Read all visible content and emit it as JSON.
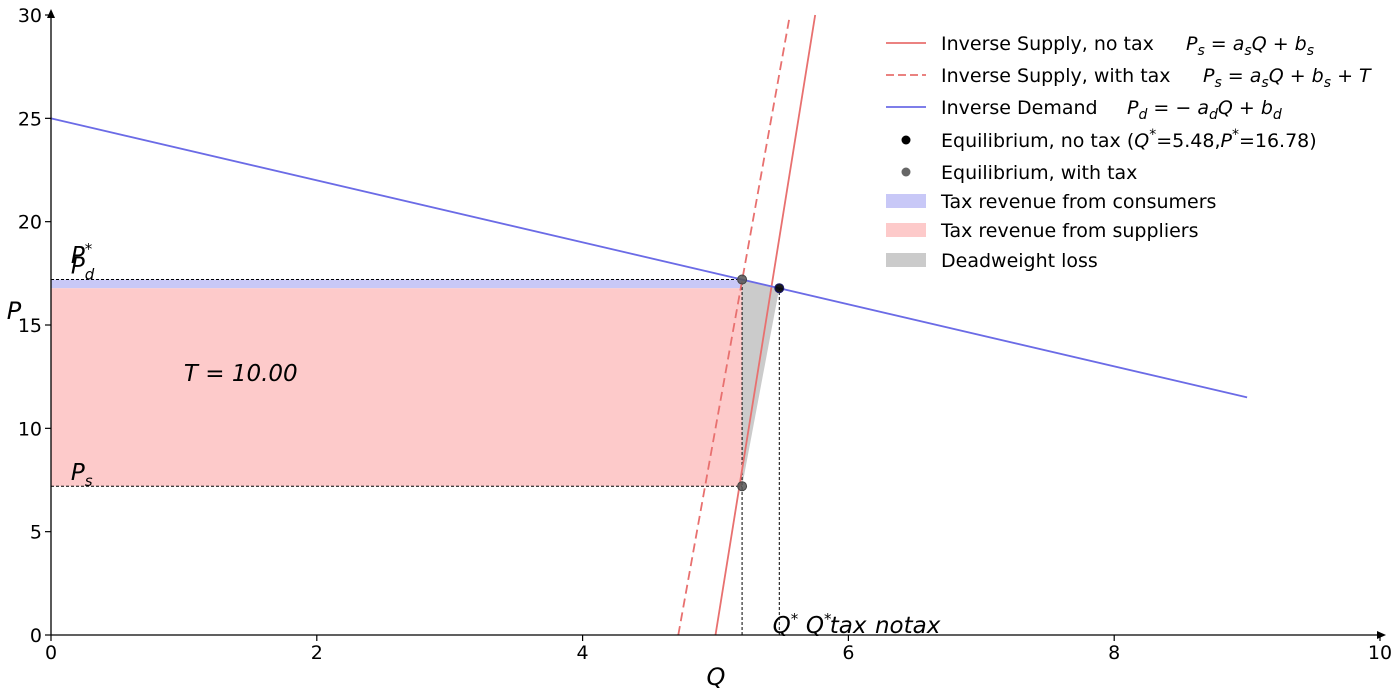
{
  "chart_data": {
    "type": "line",
    "xlabel": "Q",
    "ylabel": "P",
    "xlim": [
      0,
      10
    ],
    "ylim": [
      0,
      30
    ],
    "x_ticks": [
      "0",
      "2",
      "4",
      "6",
      "8",
      "10"
    ],
    "y_ticks": [
      "0",
      "5",
      "10",
      "15",
      "20",
      "25",
      "30"
    ],
    "grid": false,
    "legend_position": "top-right",
    "series": [
      {
        "name": "Inverse Supply, no tax",
        "formula": "P_s = a_sQ + b_s",
        "style": "solid",
        "color": "#e8706f",
        "points": [
          [
            5.0,
            0.0
          ],
          [
            5.75,
            30.0
          ]
        ]
      },
      {
        "name": "Inverse Supply, with tax",
        "formula": "P_s = a_sQ + b_s + T",
        "style": "dashed",
        "color": "#e8706f",
        "points": [
          [
            4.72,
            0.0
          ],
          [
            5.56,
            30.0
          ]
        ]
      },
      {
        "name": "Inverse Demand",
        "formula": "P_d = -a_dQ + b_d",
        "style": "solid",
        "color": "#6b6be6",
        "points": [
          [
            0.0,
            25.0
          ],
          [
            9.0,
            11.5
          ]
        ]
      }
    ],
    "equilibria": [
      {
        "name": "Equilibrium, no tax",
        "q_value": "5.48",
        "p_value": "16.78",
        "x": 5.48,
        "y": 16.78,
        "color": "#000000"
      },
      {
        "name": "Equilibrium, with tax",
        "points": [
          [
            5.2,
            17.2
          ],
          [
            5.2,
            7.2
          ]
        ],
        "color": "#555555"
      }
    ],
    "areas": [
      {
        "name": "Tax revenue from consumers",
        "color": "#c8c8f7",
        "polygon": [
          [
            0,
            16.78
          ],
          [
            5.2,
            16.78
          ],
          [
            5.2,
            17.2
          ],
          [
            0,
            17.2
          ]
        ]
      },
      {
        "name": "Tax revenue from suppliers",
        "color": "#fdcaca",
        "polygon": [
          [
            0,
            7.2
          ],
          [
            5.2,
            7.2
          ],
          [
            5.2,
            16.78
          ],
          [
            0,
            16.78
          ]
        ]
      },
      {
        "name": "Deadweight loss",
        "color": "#cbcbcb",
        "polygon": [
          [
            5.2,
            17.2
          ],
          [
            5.48,
            16.78
          ],
          [
            5.2,
            7.2
          ]
        ]
      }
    ],
    "reference_lines": [
      {
        "points": [
          [
            0,
            17.2
          ],
          [
            5.2,
            17.2
          ]
        ]
      },
      {
        "points": [
          [
            0,
            7.2
          ],
          [
            5.2,
            7.2
          ]
        ]
      },
      {
        "points": [
          [
            5.2,
            0
          ],
          [
            5.2,
            17.2
          ]
        ]
      },
      {
        "points": [
          [
            5.48,
            0
          ],
          [
            5.48,
            16.78
          ]
        ]
      }
    ],
    "annotations": [
      {
        "text": "P_d",
        "x": 0.15,
        "y": 17.4
      },
      {
        "text": "P*",
        "x": 0.15,
        "y": 17.9
      },
      {
        "text": "P_s",
        "x": 0.15,
        "y": 7.4
      },
      {
        "text": "T = 10.00",
        "x": 1.0,
        "y": 12.2
      },
      {
        "text": "Q*",
        "x": 5.43,
        "y": 0.0
      },
      {
        "text": "Q*",
        "x": 5.68,
        "y": 0.0
      },
      {
        "text": "tax",
        "x": 5.86,
        "y": 0.0
      },
      {
        "text": "notax",
        "x": 6.2,
        "y": 0.0
      }
    ]
  }
}
